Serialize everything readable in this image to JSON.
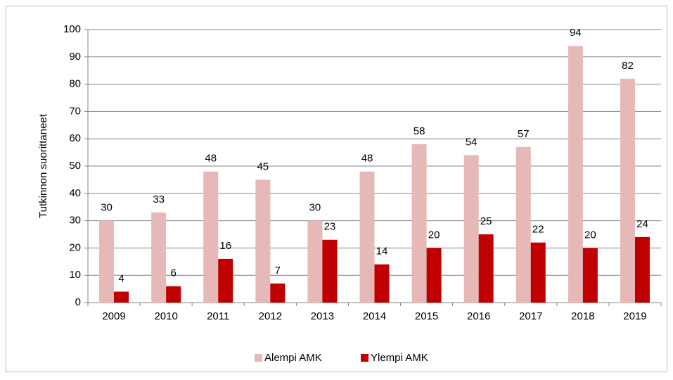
{
  "chart_data": {
    "type": "bar",
    "ylabel": "Tutkinnon suorittaneet",
    "categories": [
      "2009",
      "2010",
      "2011",
      "2012",
      "2013",
      "2014",
      "2015",
      "2016",
      "2017",
      "2018",
      "2019"
    ],
    "series": [
      {
        "name": "Alempi AMK",
        "color": "#e6b9b8",
        "values": [
          30,
          33,
          48,
          45,
          30,
          48,
          58,
          54,
          57,
          94,
          82
        ]
      },
      {
        "name": "Ylempi AMK",
        "color": "#c00000",
        "values": [
          4,
          6,
          16,
          7,
          23,
          14,
          20,
          25,
          22,
          20,
          24
        ]
      }
    ],
    "ylim": [
      0,
      100
    ],
    "yticks": [
      0,
      10,
      20,
      30,
      40,
      50,
      60,
      70,
      80,
      90,
      100
    ],
    "grid": true,
    "legend": "bottom"
  }
}
